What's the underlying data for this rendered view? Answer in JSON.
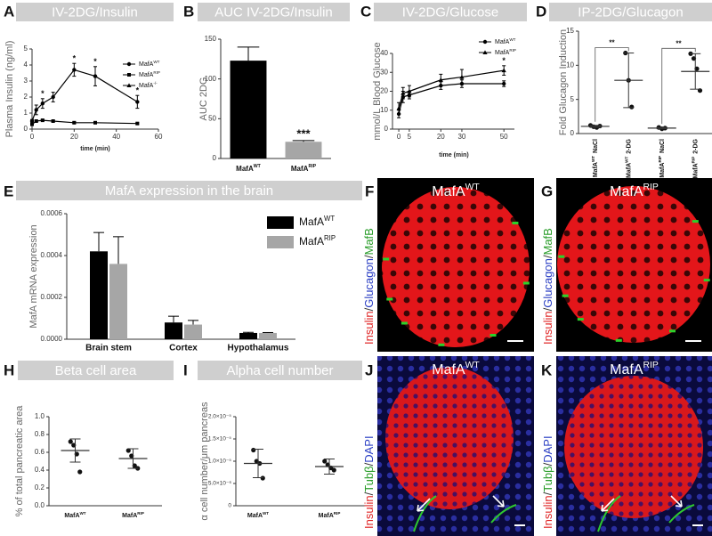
{
  "chart_data": [
    {
      "panel": "A",
      "type": "line",
      "title": "IV-2DG/Insulin",
      "ylabel": "Plasma Insulin (ng/ml)",
      "xlabel": "time (min)",
      "x": [
        0,
        2,
        5,
        10,
        20,
        30,
        50
      ],
      "series": [
        {
          "name": "MafA",
          "sup": "WT",
          "marker": "circle",
          "color": "#000000",
          "values": [
            0.5,
            1.2,
            1.6,
            2.0,
            3.7,
            3.3,
            1.7
          ],
          "errors": [
            0.1,
            0.3,
            0.3,
            0.3,
            0.4,
            0.6,
            0.4
          ]
        },
        {
          "name": "MafA",
          "sup": "RIP",
          "marker": "square",
          "color": "#000000",
          "values": [
            0.3,
            0.5,
            0.55,
            0.5,
            0.4,
            0.4,
            0.35
          ],
          "errors": [
            0.05,
            0.05,
            0.05,
            0.05,
            0.05,
            0.05,
            0.05
          ]
        },
        {
          "name": "MafA",
          "sup": "-/-",
          "marker": "triangle",
          "color": "#000000",
          "values": [
            null,
            null,
            null,
            null,
            null,
            null,
            null
          ]
        }
      ],
      "annotations": [
        {
          "text": "*",
          "series": 0,
          "index": 2
        },
        {
          "text": "*",
          "series": 0,
          "index": 4
        },
        {
          "text": "*",
          "series": 0,
          "index": 5
        },
        {
          "text": "*",
          "series": 0,
          "index": 6
        }
      ],
      "xlim": [
        0,
        60
      ],
      "xticks": [
        0,
        20,
        40,
        60
      ],
      "ylim": [
        0,
        5
      ],
      "yticks": [
        0,
        1,
        2,
        3,
        4,
        5
      ]
    },
    {
      "panel": "B",
      "type": "bar",
      "title": "AUC IV-2DG/Insulin",
      "ylabel": "AUC 2DG",
      "categories": [
        {
          "text": "MafA",
          "sup": "WT"
        },
        {
          "text": "MafA",
          "sup": "RIP"
        }
      ],
      "values": [
        123,
        21
      ],
      "errors": [
        17,
        1.5
      ],
      "colors": [
        "#000000",
        "#a6a6a6"
      ],
      "annotations": [
        {
          "text": "***",
          "index": 1
        }
      ],
      "ylim": [
        0,
        150
      ],
      "yticks": [
        0,
        50,
        100,
        150
      ]
    },
    {
      "panel": "C",
      "type": "line",
      "title": "IV-2DG/Glucose",
      "ylabel": "mmol/L Blood Glucose",
      "xlabel": "time (min)",
      "x": [
        0,
        2,
        5,
        20,
        30,
        50
      ],
      "series": [
        {
          "name": "MafA",
          "sup": "WT",
          "marker": "circle",
          "color": "#000000",
          "values": [
            8,
            17,
            18,
            23,
            24,
            24
          ],
          "errors": [
            2,
            3,
            2,
            2,
            2,
            1.5
          ]
        },
        {
          "name": "MafA",
          "sup": "RIP",
          "marker": "triangle",
          "color": "#000000",
          "values": [
            11,
            19,
            20,
            26,
            27.5,
            31
          ],
          "errors": [
            3,
            3,
            3,
            3,
            4,
            2.5
          ]
        }
      ],
      "annotations": [
        {
          "text": "*",
          "series": 1,
          "index": 5
        }
      ],
      "xlim": [
        -3,
        55
      ],
      "xticks": [
        0,
        5,
        20,
        30,
        50
      ],
      "ylim": [
        0,
        40
      ],
      "yticks": [
        0,
        10,
        20,
        30,
        40
      ]
    },
    {
      "panel": "D",
      "type": "dot",
      "title": "IP-2DG/Glucagon",
      "ylabel": "Fold Glucagon Induction",
      "categories": [
        {
          "text": "MafA",
          "sup": "WT",
          "suffix": "NaCl"
        },
        {
          "text": "MafA",
          "sup": "WT",
          "suffix": "2-DG"
        },
        {
          "text": "MafA",
          "sup": "RIP",
          "suffix": "NaCl"
        },
        {
          "text": "MafA",
          "sup": "RIP",
          "suffix": "2-DG"
        }
      ],
      "groups": [
        {
          "values": [
            1.2,
            1.0,
            0.9,
            1.1
          ],
          "mean": 1.05,
          "sd": 0.15
        },
        {
          "values": [
            11.8,
            7.8,
            3.9
          ],
          "mean": 7.8,
          "sd": 4
        },
        {
          "values": [
            0.9,
            0.7,
            0.8
          ],
          "mean": 0.8,
          "sd": 0.1
        },
        {
          "values": [
            11.7,
            11,
            9.5,
            6.3
          ],
          "mean": 9.1,
          "sd": 2.6
        }
      ],
      "comparisons": [
        {
          "from": 0,
          "to": 1,
          "text": "**"
        },
        {
          "from": 2,
          "to": 3,
          "text": "**"
        }
      ],
      "ylim": [
        0,
        15
      ],
      "yticks": [
        0,
        5,
        10,
        15
      ]
    },
    {
      "panel": "E",
      "type": "bar",
      "title": "MafA expression in the brain",
      "ylabel": "MafA mRNA expression",
      "categories": [
        "Brain stem",
        "Cortex",
        "Hypothalamus"
      ],
      "series": [
        {
          "name": "MafA",
          "sup": "WT",
          "color": "#000000",
          "values": [
            0.00042,
            8e-05,
            3e-05
          ],
          "errors": [
            9e-05,
            3e-05,
            3e-06
          ]
        },
        {
          "name": "MafA",
          "sup": "RIP",
          "color": "#a6a6a6",
          "values": [
            0.00036,
            7e-05,
            3e-05
          ],
          "errors": [
            0.00013,
            2e-05,
            2e-06
          ]
        }
      ],
      "legend": "upper right",
      "ylim": [
        0,
        0.0006
      ],
      "yticks": [
        {
          "value": 0,
          "label": "0.0000"
        },
        {
          "value": 0.0002,
          "label": "0.0002"
        },
        {
          "value": 0.0004,
          "label": "0.0004"
        },
        {
          "value": 0.0006,
          "label": "0.0006"
        }
      ]
    },
    {
      "panel": "H",
      "type": "dot",
      "title": "Beta cell area",
      "ylabel": "% of total pancreatic area",
      "categories": [
        {
          "text": "MafA",
          "sup": "WT"
        },
        {
          "text": "MafA",
          "sup": "RIP"
        }
      ],
      "groups": [
        {
          "values": [
            0.72,
            0.68,
            0.58,
            0.38
          ],
          "mean": 0.62,
          "sd": 0.13
        },
        {
          "values": [
            0.62,
            0.56,
            0.45,
            0.42
          ],
          "mean": 0.53,
          "sd": 0.11
        }
      ],
      "ylim": [
        0,
        1
      ],
      "yticks": [
        {
          "value": 0,
          "label": "0.0"
        },
        0.2,
        0.4,
        0.6,
        0.8,
        {
          "value": 1,
          "label": "1.0"
        }
      ]
    },
    {
      "panel": "I",
      "type": "dot",
      "title": "Alpha cell number",
      "ylabel": "α cell number/μm pancreas",
      "categories": [
        {
          "text": "MafA",
          "sup": "WT"
        },
        {
          "text": "MafA",
          "sup": "RIP"
        }
      ],
      "groups": [
        {
          "values": [
            1.25e-05,
            1e-05,
            9.5e-06,
            6.2e-06
          ],
          "mean": 9.5e-06,
          "sd": 3.2e-06
        },
        {
          "values": [
            1e-05,
            9.2e-06,
            8.5e-06,
            8e-06
          ],
          "mean": 8.8e-06,
          "sd": 1.7e-06
        }
      ],
      "ylim": [
        0,
        2e-05
      ],
      "yticks": [
        0,
        {
          "value": 5e-06,
          "label": "5.0×10⁻⁶"
        },
        {
          "value": 1e-05,
          "label": "1.0×10⁻⁵"
        },
        {
          "value": 1.5e-05,
          "label": "1.5×10⁻⁵"
        },
        {
          "value": 2e-05,
          "label": "2.0×10⁻⁵"
        }
      ]
    }
  ],
  "images": [
    {
      "panel": "F",
      "title": "MafA",
      "sup": "WT",
      "channels": [
        "Insulin",
        "/",
        "Glucagon",
        "/",
        "MafB"
      ],
      "colors": [
        "#e02424",
        "#333333",
        "#2b3fc4",
        "#333333",
        "#2a9d2a"
      ]
    },
    {
      "panel": "G",
      "title": "MafA",
      "sup": "RIP",
      "channels": [
        "Insulin",
        "/",
        "Glucagon",
        "/",
        "MafB"
      ],
      "colors": [
        "#e02424",
        "#333333",
        "#2b3fc4",
        "#333333",
        "#2a9d2a"
      ]
    },
    {
      "panel": "J",
      "title": "MafA",
      "sup": "WT",
      "channels": [
        "Insulin",
        "/",
        "Tubβ",
        "/",
        "DAPI"
      ],
      "colors": [
        "#e02424",
        "#333333",
        "#2a9d2a",
        "#333333",
        "#2b3fc4"
      ]
    },
    {
      "panel": "K",
      "title": "MafA",
      "sup": "RIP",
      "channels": [
        "Insulin",
        "/",
        "Tubβ",
        "/",
        "DAPI"
      ],
      "colors": [
        "#e02424",
        "#333333",
        "#2a9d2a",
        "#333333",
        "#2b3fc4"
      ]
    }
  ]
}
